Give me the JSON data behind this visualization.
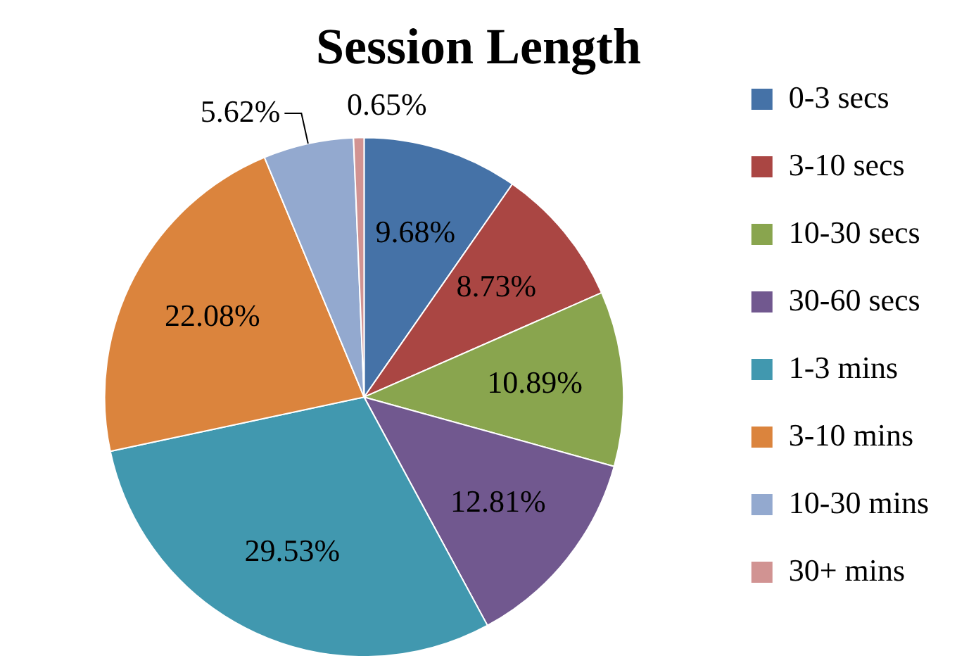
{
  "chart_data": {
    "type": "pie",
    "title": "Session Length",
    "categories": [
      "0-3 secs",
      "3-10 secs",
      "10-30 secs",
      "30-60 secs",
      "1-3 mins",
      "3-10 mins",
      "10-30 mins",
      "30+ mins"
    ],
    "values": [
      9.68,
      8.73,
      10.89,
      12.81,
      29.53,
      22.08,
      5.62,
      0.65
    ],
    "value_labels": [
      "9.68%",
      "8.73%",
      "10.89%",
      "12.81%",
      "29.53%",
      "22.08%",
      "5.62%",
      "0.65%"
    ],
    "colors": [
      "#4572a7",
      "#aa4643",
      "#89a54e",
      "#71588f",
      "#4198af",
      "#db843d",
      "#93a9cf",
      "#d19392"
    ],
    "legend": "right"
  }
}
